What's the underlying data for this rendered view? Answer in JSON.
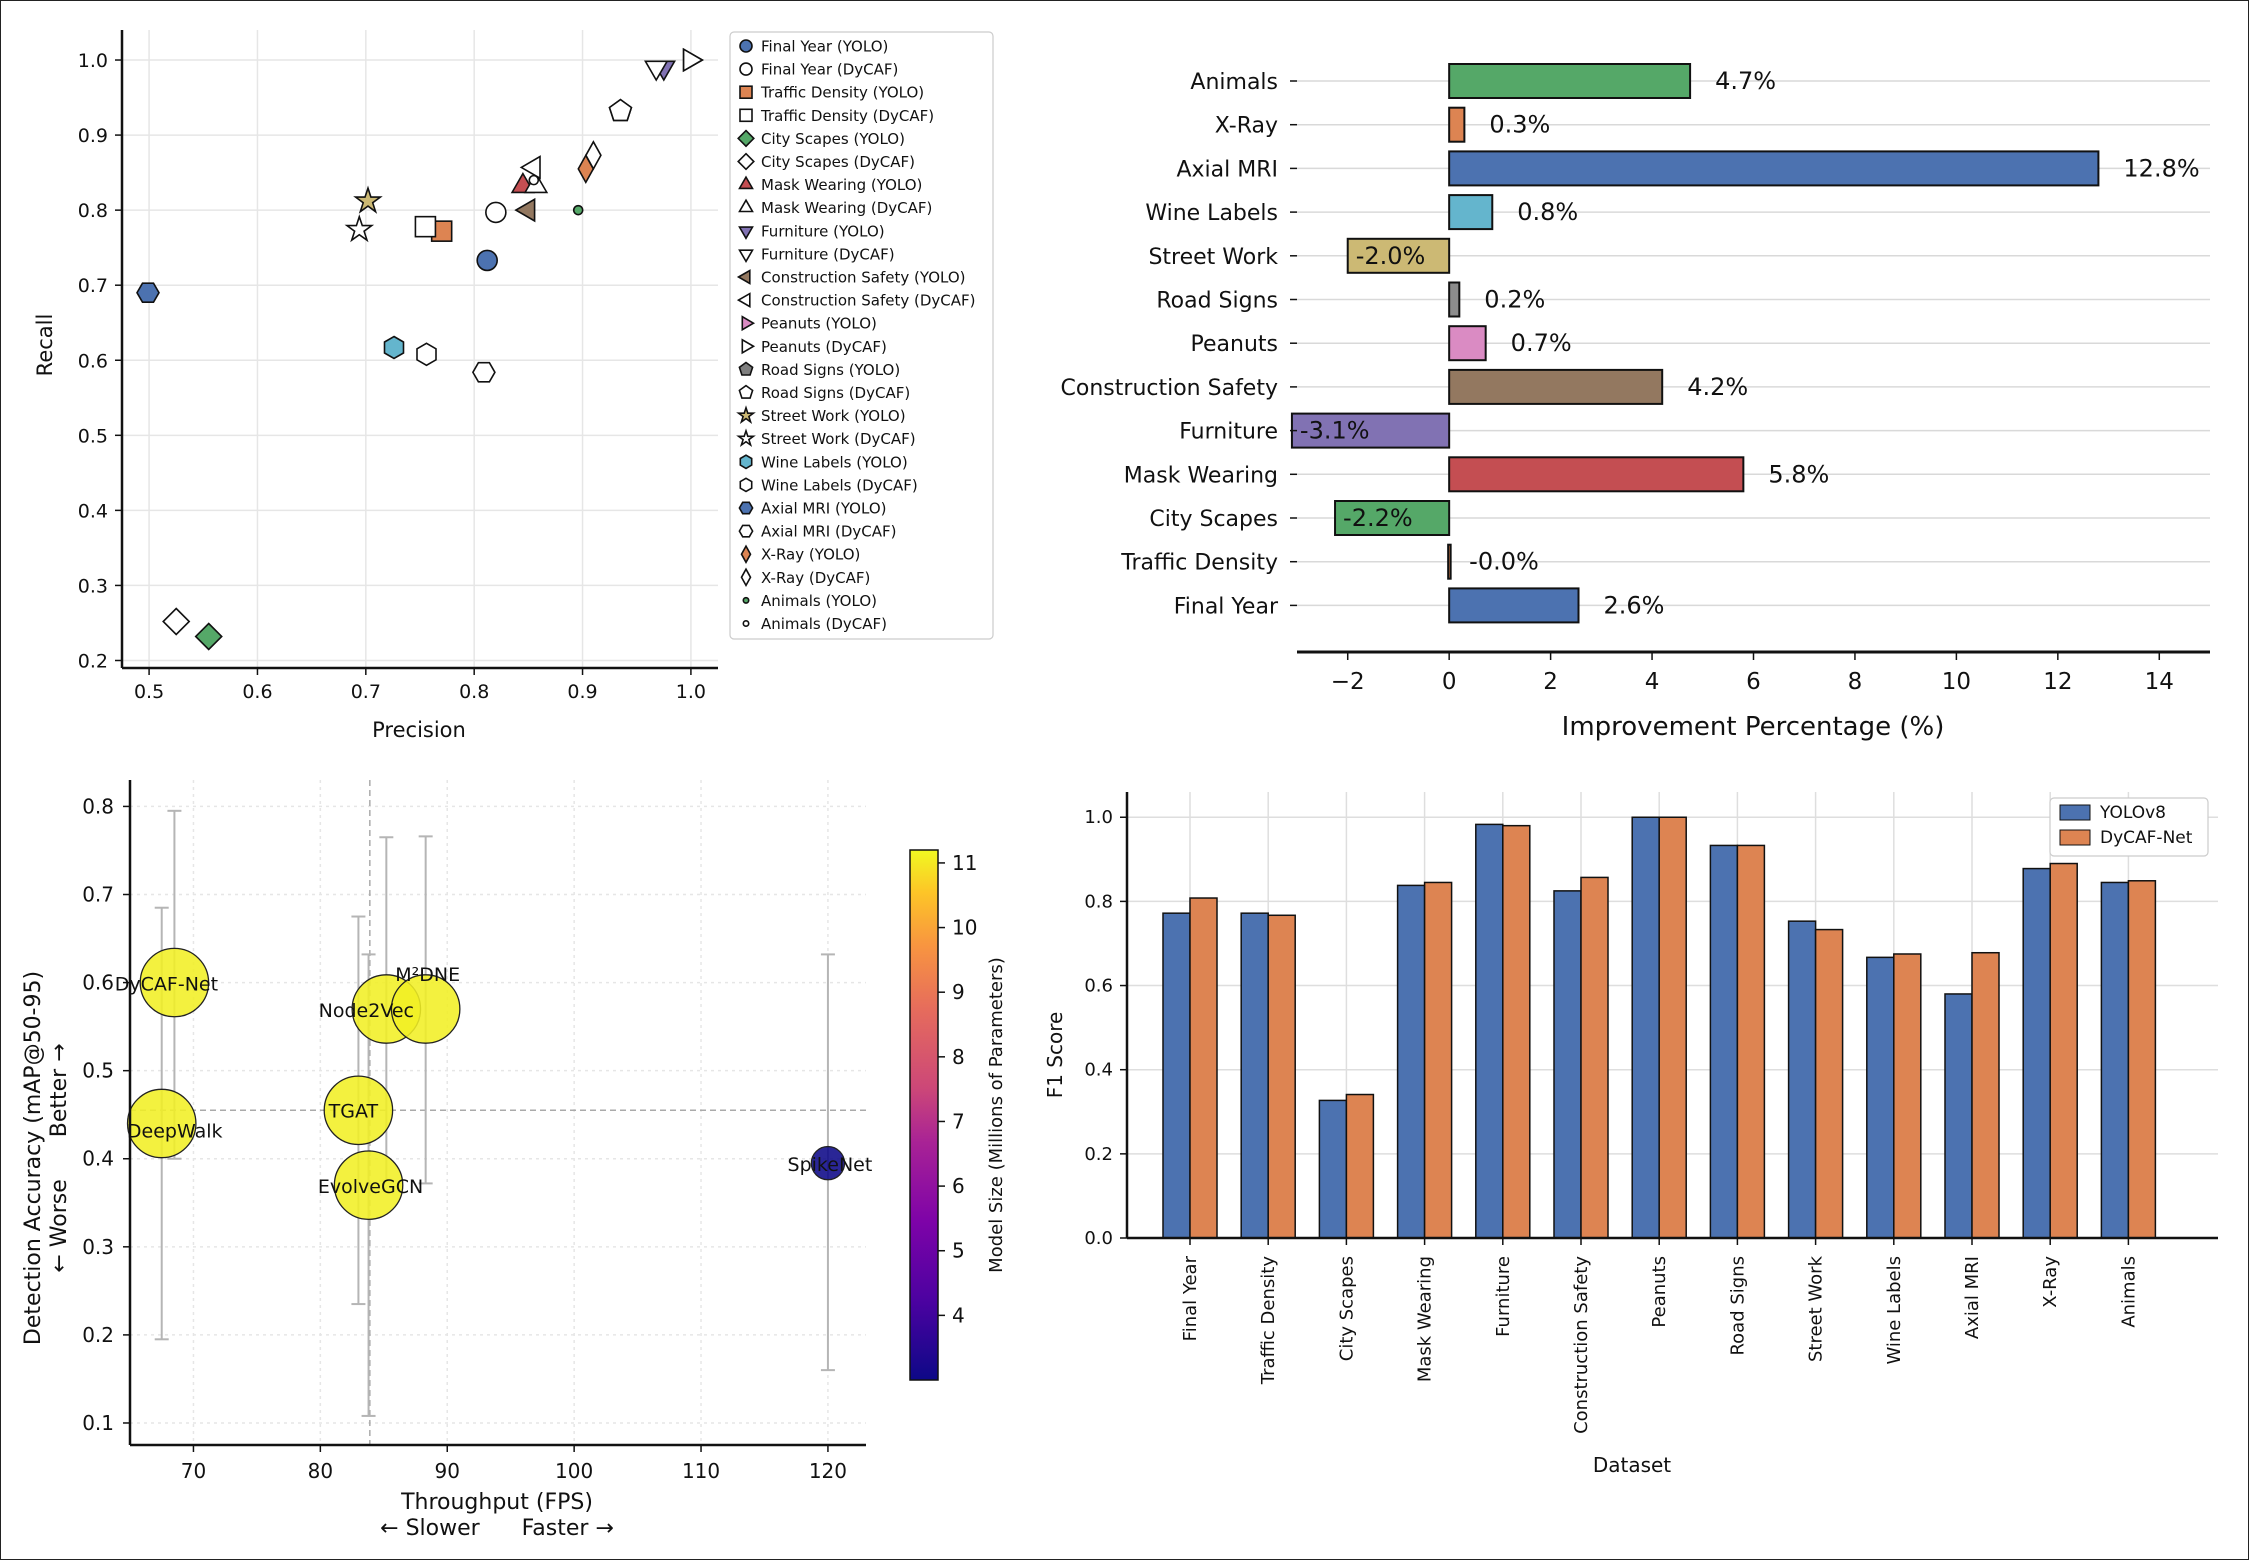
{
  "chart_data": [
    {
      "type": "scatter",
      "title": "",
      "xlabel": "Precision",
      "ylabel": "Recall",
      "xlim": [
        0.475,
        1.025
      ],
      "ylim": [
        0.19,
        1.04
      ],
      "xticks": [
        0.5,
        0.6,
        0.7,
        0.8,
        0.9,
        1.0
      ],
      "xtick_labels": [
        "0.5",
        "0.6",
        "0.7",
        "0.8",
        "0.9",
        "1.0"
      ],
      "yticks": [
        0.2,
        0.3,
        0.4,
        0.5,
        0.6,
        0.7,
        0.8,
        0.9,
        1.0
      ],
      "ytick_labels": [
        "0.2",
        "0.3",
        "0.4",
        "0.5",
        "0.6",
        "0.7",
        "0.8",
        "0.9",
        "1.0"
      ],
      "legend_position": "right",
      "series": [
        {
          "name": "Final Year (YOLO)",
          "marker": "circle",
          "color": "#4c72b0",
          "x": 0.812,
          "y": 0.733
        },
        {
          "name": "Final Year (DyCAF)",
          "marker": "circle",
          "color": "#ffffff",
          "x": 0.82,
          "y": 0.797
        },
        {
          "name": "Traffic Density (YOLO)",
          "marker": "square",
          "color": "#dd8452",
          "x": 0.77,
          "y": 0.772
        },
        {
          "name": "Traffic Density (DyCAF)",
          "marker": "square",
          "color": "#ffffff",
          "x": 0.755,
          "y": 0.778
        },
        {
          "name": "City Scapes (YOLO)",
          "marker": "diamond",
          "color": "#55a868",
          "x": 0.555,
          "y": 0.232
        },
        {
          "name": "City Scapes (DyCAF)",
          "marker": "diamond",
          "color": "#ffffff",
          "x": 0.525,
          "y": 0.252
        },
        {
          "name": "Mask Wearing (YOLO)",
          "marker": "triangle-up",
          "color": "#c44e52",
          "x": 0.845,
          "y": 0.832
        },
        {
          "name": "Mask Wearing (DyCAF)",
          "marker": "triangle-up",
          "color": "#ffffff",
          "x": 0.857,
          "y": 0.832
        },
        {
          "name": "Furniture (YOLO)",
          "marker": "triangle-down",
          "color": "#8172b3",
          "x": 0.975,
          "y": 0.99
        },
        {
          "name": "Furniture (DyCAF)",
          "marker": "triangle-down",
          "color": "#ffffff",
          "x": 0.968,
          "y": 0.99
        },
        {
          "name": "Construction Safety (YOLO)",
          "marker": "triangle-left",
          "color": "#937860",
          "x": 0.85,
          "y": 0.8
        },
        {
          "name": "Construction Safety (DyCAF)",
          "marker": "triangle-left",
          "color": "#ffffff",
          "x": 0.855,
          "y": 0.857
        },
        {
          "name": "Peanuts (YOLO)",
          "marker": "triangle-right",
          "color": "#da8bc3",
          "x": 0.999,
          "y": 1.0
        },
        {
          "name": "Peanuts (DyCAF)",
          "marker": "triangle-right",
          "color": "#ffffff",
          "x": 0.999,
          "y": 1.0
        },
        {
          "name": "Road Signs (YOLO)",
          "marker": "pentagon",
          "color": "#7f7f7f",
          "x": 0.935,
          "y": 0.932
        },
        {
          "name": "Road Signs (DyCAF)",
          "marker": "pentagon",
          "color": "#ffffff",
          "x": 0.935,
          "y": 0.932
        },
        {
          "name": "Street Work (YOLO)",
          "marker": "star",
          "color": "#ccb974",
          "x": 0.702,
          "y": 0.812
        },
        {
          "name": "Street Work (DyCAF)",
          "marker": "star",
          "color": "#ffffff",
          "x": 0.694,
          "y": 0.774
        },
        {
          "name": "Wine Labels (YOLO)",
          "marker": "hexagon",
          "color": "#64b5cd",
          "x": 0.726,
          "y": 0.617
        },
        {
          "name": "Wine Labels (DyCAF)",
          "marker": "hexagon",
          "color": "#ffffff",
          "x": 0.756,
          "y": 0.608
        },
        {
          "name": "Axial MRI (YOLO)",
          "marker": "hexagon2",
          "color": "#4c72b0",
          "x": 0.499,
          "y": 0.69
        },
        {
          "name": "Axial MRI (DyCAF)",
          "marker": "hexagon2",
          "color": "#ffffff",
          "x": 0.809,
          "y": 0.584
        },
        {
          "name": "X-Ray (YOLO)",
          "marker": "thin-diamond",
          "color": "#dd8452",
          "x": 0.903,
          "y": 0.855
        },
        {
          "name": "X-Ray (DyCAF)",
          "marker": "thin-diamond",
          "color": "#ffffff",
          "x": 0.91,
          "y": 0.873
        },
        {
          "name": "Animals (YOLO)",
          "marker": "point",
          "color": "#55a868",
          "x": 0.896,
          "y": 0.8
        },
        {
          "name": "Animals (DyCAF)",
          "marker": "point",
          "color": "#ffffff",
          "x": 0.855,
          "y": 0.84
        }
      ]
    },
    {
      "type": "bar",
      "orientation": "horizontal",
      "title": "",
      "xlabel": "Improvement Percentage (%)",
      "ylabel": "",
      "xlim": [
        -3.0,
        15.0
      ],
      "xticks": [
        -2,
        0,
        2,
        4,
        6,
        8,
        10,
        12,
        14
      ],
      "xtick_labels": [
        "−2",
        "0",
        "2",
        "4",
        "6",
        "8",
        "10",
        "12",
        "14"
      ],
      "categories": [
        "Animals",
        "X-Ray",
        "Axial MRI",
        "Wine Labels",
        "Street Work",
        "Road Signs",
        "Peanuts",
        "Construction Safety",
        "Furniture",
        "Mask Wearing",
        "City Scapes",
        "Traffic Density",
        "Final Year"
      ],
      "values": [
        4.75,
        0.3,
        12.8,
        0.85,
        -2.0,
        0.2,
        0.72,
        4.2,
        -3.1,
        5.8,
        -2.25,
        -0.02,
        2.55
      ],
      "value_labels": [
        "4.7%",
        "0.3%",
        "12.8%",
        "0.8%",
        "-2.0%",
        "0.2%",
        "0.7%",
        "4.2%",
        "-3.1%",
        "5.8%",
        "-2.2%",
        "-0.0%",
        "2.6%"
      ],
      "colors": [
        "#55a868",
        "#dd8452",
        "#4c72b0",
        "#64b5cd",
        "#ccb974",
        "#8c8c8c",
        "#da8bc3",
        "#937860",
        "#8172b3",
        "#c44e52",
        "#55a868",
        "#dd8452",
        "#4c72b0"
      ]
    },
    {
      "type": "scatter",
      "title": "",
      "xlabel": "Throughput (FPS)",
      "xlabel_sub": "← Slower      Faster →",
      "ylabel": "Detection Accuracy (mAP@50-95)",
      "ylabel_sub": "← Worse      Better →",
      "xlim": [
        65,
        123
      ],
      "ylim": [
        0.075,
        0.83
      ],
      "xticks": [
        70,
        80,
        90,
        100,
        110,
        120
      ],
      "xtick_labels": [
        "70",
        "80",
        "90",
        "100",
        "110",
        "120"
      ],
      "yticks": [
        0.1,
        0.2,
        0.3,
        0.4,
        0.5,
        0.6,
        0.7,
        0.8
      ],
      "ytick_labels": [
        "0.1",
        "0.2",
        "0.3",
        "0.4",
        "0.5",
        "0.6",
        "0.7",
        "0.8"
      ],
      "reference_x": 83.9,
      "reference_y": 0.455,
      "colorbar": {
        "label": "Model Size (Millions of Parameters)",
        "range": [
          3.0,
          11.2
        ],
        "ticks": [
          4,
          5,
          6,
          7,
          8,
          9,
          10,
          11
        ],
        "tick_labels": [
          "4",
          "5",
          "6",
          "7",
          "8",
          "9",
          "10",
          "11"
        ],
        "colormap": "plasma"
      },
      "points": [
        {
          "label": "DyCAF-Net",
          "x": 68.5,
          "y": 0.6,
          "yerr_low": 0.4,
          "yerr_high": 0.795,
          "size": 11.0
        },
        {
          "label": "DeepWalk",
          "x": 67.5,
          "y": 0.44,
          "yerr_low": 0.195,
          "yerr_high": 0.685,
          "size": 11.0
        },
        {
          "label": "TGAT",
          "x": 83.0,
          "y": 0.455,
          "yerr_low": 0.235,
          "yerr_high": 0.675,
          "size": 11.0
        },
        {
          "label": "EvolveGCN",
          "x": 83.8,
          "y": 0.37,
          "yerr_low": 0.108,
          "yerr_high": 0.632,
          "size": 11.0
        },
        {
          "label": "Node2Vec",
          "x": 85.2,
          "y": 0.57,
          "yerr_low": 0.375,
          "yerr_high": 0.765,
          "size": 11.0
        },
        {
          "label": "M²DNE",
          "x": 88.3,
          "y": 0.57,
          "yerr_low": 0.372,
          "yerr_high": 0.766,
          "size": 11.0
        },
        {
          "label": "SpikeNet",
          "x": 120.0,
          "y": 0.395,
          "yerr_low": 0.16,
          "yerr_high": 0.632,
          "size": 3.0
        }
      ]
    },
    {
      "type": "bar",
      "title": "",
      "xlabel": "Dataset",
      "ylabel": "F1 Score",
      "ylim": [
        0,
        1.06
      ],
      "yticks": [
        0.0,
        0.2,
        0.4,
        0.6,
        0.8,
        1.0
      ],
      "ytick_labels": [
        "0.0",
        "0.2",
        "0.4",
        "0.6",
        "0.8",
        "1.0"
      ],
      "legend_position": "top-right",
      "categories": [
        "Final Year",
        "Traffic Density",
        "City Scapes",
        "Mask Wearing",
        "Furniture",
        "Construction Safety",
        "Peanuts",
        "Road Signs",
        "Street Work",
        "Wine Labels",
        "Axial MRI",
        "X-Ray",
        "Animals"
      ],
      "series": [
        {
          "name": "YOLOv8",
          "color": "#4c72b0",
          "values": [
            0.772,
            0.772,
            0.327,
            0.838,
            0.983,
            0.825,
            1.0,
            0.933,
            0.753,
            0.667,
            0.58,
            0.878,
            0.845
          ]
        },
        {
          "name": "DyCAF-Net",
          "color": "#dd8452",
          "values": [
            0.808,
            0.767,
            0.341,
            0.845,
            0.98,
            0.857,
            1.0,
            0.933,
            0.733,
            0.675,
            0.678,
            0.89,
            0.849
          ]
        }
      ]
    }
  ]
}
